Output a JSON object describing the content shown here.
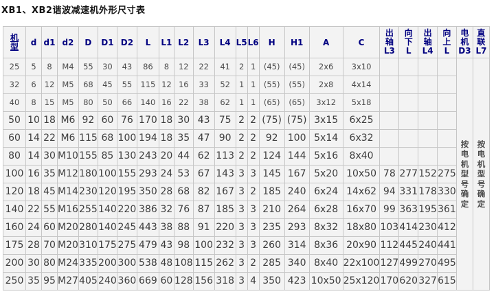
{
  "title": "XB1、XB2谐波减速机外形尺寸表",
  "table": {
    "columns": [
      {
        "name": "model",
        "label": "机型",
        "stacked": [
          "机",
          "型"
        ],
        "underline": true
      },
      {
        "name": "d",
        "label": "d"
      },
      {
        "name": "d1",
        "label": "d1"
      },
      {
        "name": "d2",
        "label": "d2"
      },
      {
        "name": "D",
        "label": "D"
      },
      {
        "name": "D1",
        "label": "D1"
      },
      {
        "name": "D2",
        "label": "D2"
      },
      {
        "name": "L",
        "label": "L"
      },
      {
        "name": "L1",
        "label": "L1"
      },
      {
        "name": "L2",
        "label": "L2"
      },
      {
        "name": "L3",
        "label": "L3"
      },
      {
        "name": "L4",
        "label": "L4"
      },
      {
        "name": "L5",
        "label": "L5"
      },
      {
        "name": "L6",
        "label": "L6"
      },
      {
        "name": "H",
        "label": "H"
      },
      {
        "name": "H1",
        "label": "H1"
      },
      {
        "name": "A",
        "label": "A"
      },
      {
        "name": "C",
        "label": "C"
      },
      {
        "name": "out-shaft-l3",
        "label": "出轴L3",
        "stacked": [
          "出",
          "轴",
          "L3"
        ]
      },
      {
        "name": "down-l",
        "label": "向下L",
        "stacked": [
          "向",
          "下",
          "L"
        ]
      },
      {
        "name": "out-shaft-l4",
        "label": "出轴L4",
        "stacked": [
          "出",
          "轴",
          "L4"
        ]
      },
      {
        "name": "up-l",
        "label": "向上L",
        "stacked": [
          "向",
          "上",
          "L"
        ]
      },
      {
        "name": "motor-d3",
        "label": "电机D3",
        "stacked": [
          "电",
          "机",
          "D3"
        ]
      },
      {
        "name": "direct-l7",
        "label": "直联L7",
        "stacked": [
          "直",
          "联",
          "L7"
        ]
      }
    ],
    "rows": [
      [
        "25",
        "5",
        "8",
        "M4",
        "55",
        "30",
        "43",
        "86",
        "8",
        "12",
        "22",
        "41",
        "2",
        "1",
        "(45)",
        "(45)",
        "2x6",
        "3x10",
        "",
        "",
        "",
        ""
      ],
      [
        "32",
        "6",
        "12",
        "M5",
        "68",
        "45",
        "55",
        "115",
        "12",
        "16",
        "33",
        "52",
        "1",
        "1",
        "(55)",
        "(55)",
        "2x8",
        "4x14",
        "",
        "",
        "",
        ""
      ],
      [
        "40",
        "8",
        "15",
        "M5",
        "80",
        "50",
        "66",
        "140",
        "16",
        "22",
        "38",
        "62",
        "1",
        "1",
        "(65)",
        "(65)",
        "3x12",
        "5x18",
        "",
        "",
        "",
        ""
      ],
      [
        "50",
        "10",
        "18",
        "M6",
        "92",
        "60",
        "76",
        "170",
        "18",
        "30",
        "43",
        "75",
        "2",
        "2",
        "(75)",
        "(75)",
        "3x15",
        "6x25",
        "",
        "",
        "",
        ""
      ],
      [
        "60",
        "14",
        "22",
        "M6",
        "115",
        "68",
        "100",
        "194",
        "18",
        "35",
        "47",
        "90",
        "2",
        "2",
        "92",
        "100",
        "5x14",
        "6x32",
        "",
        "",
        "",
        ""
      ],
      [
        "80",
        "14",
        "30",
        "M10",
        "155",
        "85",
        "130",
        "243",
        "20",
        "44",
        "62",
        "113",
        "2",
        "2",
        "124",
        "144",
        "5x16",
        "8x40",
        "",
        "",
        "",
        ""
      ],
      [
        "100",
        "16",
        "35",
        "M12",
        "180",
        "100",
        "155",
        "293",
        "24",
        "53",
        "67",
        "143",
        "3",
        "3",
        "145",
        "167",
        "5x20",
        "10x50",
        "78",
        "277",
        "152",
        "275"
      ],
      [
        "120",
        "18",
        "45",
        "M14",
        "230",
        "120",
        "195",
        "350",
        "28",
        "68",
        "82",
        "167",
        "3",
        "2",
        "185",
        "240",
        "6x24",
        "14x62",
        "94",
        "331",
        "178",
        "330"
      ],
      [
        "140",
        "22",
        "55",
        "M16",
        "255",
        "140",
        "220",
        "386",
        "32",
        "76",
        "87",
        "185",
        "3",
        "3",
        "210",
        "264",
        "6x28",
        "16x70",
        "99",
        "363",
        "195",
        "361"
      ],
      [
        "160",
        "24",
        "60",
        "M20",
        "280",
        "140",
        "245",
        "443",
        "38",
        "88",
        "91",
        "220",
        "3",
        "3",
        "235",
        "293",
        "8x32",
        "18x80",
        "103",
        "414",
        "230",
        "412"
      ],
      [
        "175",
        "28",
        "70",
        "M20",
        "310",
        "175",
        "275",
        "479",
        "43",
        "98",
        "100",
        "232",
        "3",
        "3",
        "260",
        "314",
        "8x36",
        "20x90",
        "112",
        "445",
        "240",
        "441"
      ],
      [
        "200",
        "30",
        "80",
        "M24",
        "335",
        "200",
        "300",
        "538",
        "48",
        "108",
        "115",
        "262",
        "3",
        "2",
        "285",
        "340",
        "8x40",
        "22x100",
        "127",
        "499",
        "270",
        "495"
      ],
      [
        "250",
        "35",
        "95",
        "M27",
        "405",
        "240",
        "360",
        "669",
        "60",
        "128",
        "156",
        "318",
        "3",
        "4",
        "350",
        "423",
        "10x50",
        "25x120",
        "170",
        "620",
        "327",
        "615"
      ]
    ],
    "merged_columns": [
      {
        "name": "motor-d3-note",
        "note": "按电机型号确定"
      },
      {
        "name": "direct-l7-note",
        "note": "按电机型号确定"
      }
    ],
    "small_font_row_count": 3
  },
  "colors": {
    "header_text": "#000080",
    "body_text": "#3d3d3d",
    "cell_bg": "#f3f3f3",
    "border": "#c6c6c6"
  }
}
